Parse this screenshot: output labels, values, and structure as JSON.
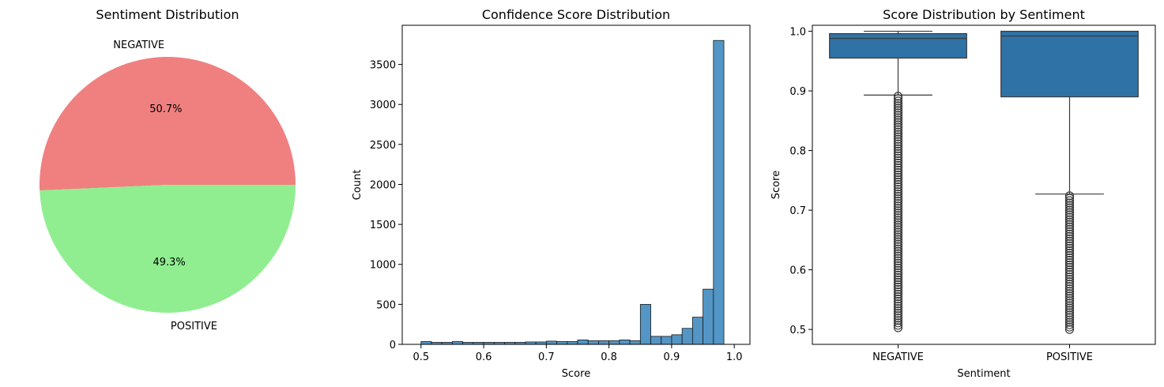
{
  "chart_data": [
    {
      "type": "pie",
      "title": "Sentiment Distribution",
      "labels": [
        "NEGATIVE",
        "POSITIVE"
      ],
      "values": [
        50.7,
        49.3
      ],
      "pct_labels": [
        "50.7%",
        "49.3%"
      ],
      "colors": [
        "#f08080",
        "#90ee90"
      ]
    },
    {
      "type": "bar",
      "title": "Confidence Score Distribution",
      "xlabel": "Score",
      "ylabel": "Count",
      "xlim": [
        0.47,
        1.025
      ],
      "ylim": [
        0,
        3990
      ],
      "xticks": [
        0.5,
        0.6,
        0.7,
        0.8,
        0.9,
        1.0
      ],
      "xtick_labels": [
        "0.5",
        "0.6",
        "0.7",
        "0.8",
        "0.9",
        "1.0"
      ],
      "yticks": [
        0,
        500,
        1000,
        1500,
        2000,
        2500,
        3000,
        3500
      ],
      "ytick_labels": [
        "0",
        "500",
        "1000",
        "1500",
        "2000",
        "2500",
        "3000",
        "3500"
      ],
      "bin_start": 0.5,
      "bin_width": 0.01667,
      "values": [
        35,
        25,
        25,
        35,
        25,
        25,
        25,
        25,
        25,
        25,
        30,
        30,
        40,
        35,
        35,
        55,
        45,
        45,
        45,
        55,
        45,
        500,
        100,
        100,
        120,
        200,
        340,
        690,
        3800
      ],
      "color": "#4a90c2"
    },
    {
      "type": "box",
      "title": "Score Distribution by Sentiment",
      "xlabel": "Sentiment",
      "ylabel": "Score",
      "categories": [
        "NEGATIVE",
        "POSITIVE"
      ],
      "ylim": [
        0.475,
        1.01
      ],
      "yticks": [
        0.5,
        0.6,
        0.7,
        0.8,
        0.9,
        1.0
      ],
      "ytick_labels": [
        "0.5",
        "0.6",
        "0.7",
        "0.8",
        "0.9",
        "1.0"
      ],
      "boxes": [
        {
          "q1": 0.955,
          "median": 0.988,
          "q3": 0.996,
          "whisker_low": 0.893,
          "whisker_high": 1.0,
          "outlier_min": 0.503,
          "outlier_max": 0.893
        },
        {
          "q1": 0.89,
          "median": 0.992,
          "q3": 1.0,
          "whisker_low": 0.727,
          "whisker_high": 1.0,
          "outlier_min": 0.5,
          "outlier_max": 0.727
        }
      ],
      "color": "#2f72a6"
    }
  ]
}
